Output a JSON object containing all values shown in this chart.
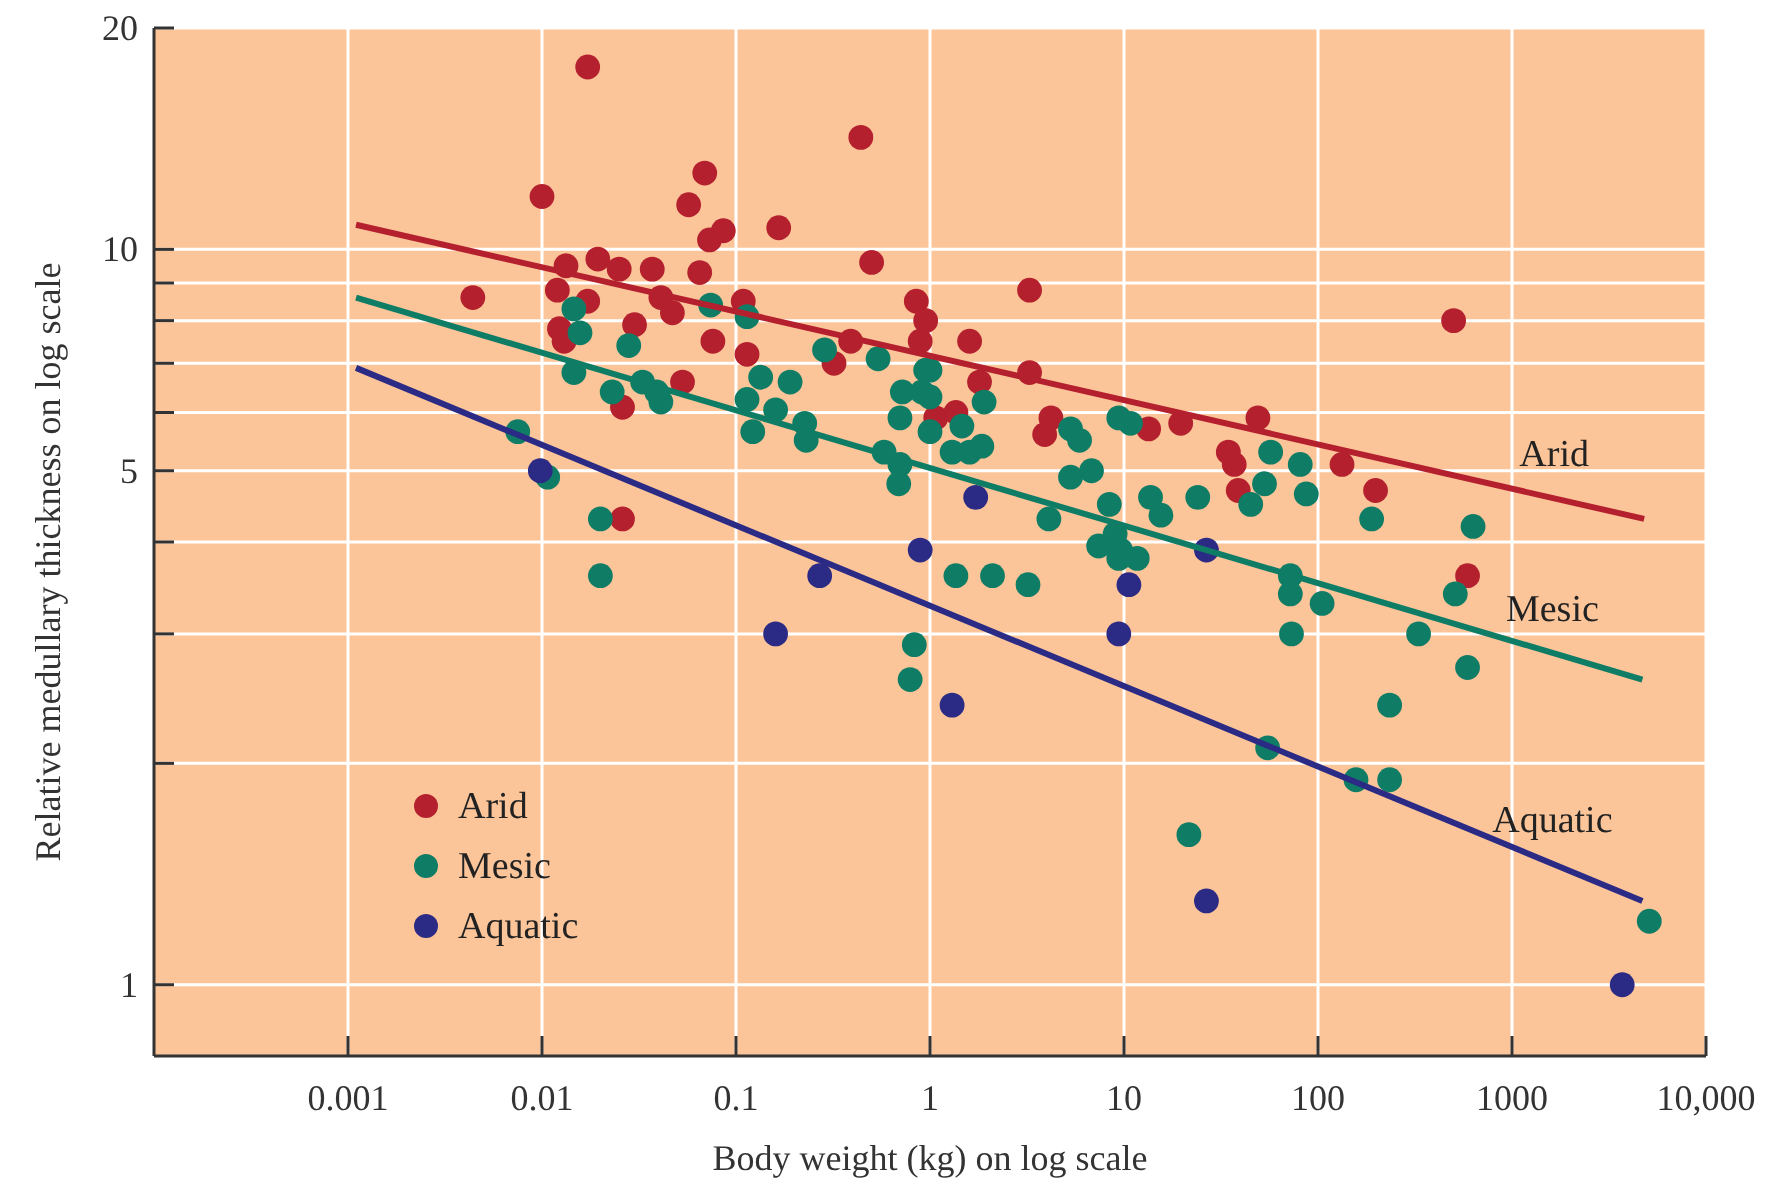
{
  "chart_data": {
    "type": "scatter",
    "xlabel": "Body weight (kg) on log scale",
    "ylabel": "Relative medullary thickness on log scale",
    "log": "xy",
    "grid": true,
    "legend": "bottom left",
    "xlim": [
      0.0001,
      10000
    ],
    "ylim": [
      0.8,
      20
    ],
    "xticks": [
      0.001,
      0.01,
      0.1,
      1,
      10,
      100,
      1000,
      {
        "value": 10000,
        "label": "10,000"
      }
    ],
    "yticks": [
      1,
      {
        "value": 2,
        "label": null
      },
      {
        "value": 3,
        "label": null
      },
      {
        "value": 4,
        "label": null
      },
      5,
      {
        "value": 6,
        "label": null
      },
      {
        "value": 7,
        "label": null
      },
      {
        "value": 8,
        "label": null
      },
      {
        "value": 9,
        "label": null
      },
      10,
      20
    ],
    "series": [
      {
        "name": "Arid",
        "color": "#b5202e",
        "x": [
          0.0172,
          0.01,
          0.0044,
          0.0133,
          0.0194,
          0.025,
          0.037,
          0.012,
          0.0172,
          0.03,
          0.0123,
          0.013,
          0.041,
          0.047,
          0.057,
          0.069,
          0.073,
          0.086,
          0.065,
          0.076,
          0.053,
          0.026,
          0.026,
          0.109,
          0.114,
          0.166,
          0.44,
          0.5,
          0.39,
          0.32,
          0.85,
          0.95,
          0.89,
          1.07,
          3.26,
          1.6,
          3.26,
          1.8,
          1.36,
          4.2,
          3.9,
          13.4,
          19.6,
          49,
          34.5,
          37,
          38.8,
          133,
          198,
          500,
          590
        ],
        "values": [
          17.7,
          11.8,
          8.6,
          9.5,
          9.7,
          9.4,
          9.4,
          8.8,
          8.5,
          7.9,
          7.8,
          7.5,
          8.6,
          8.2,
          11.5,
          12.7,
          10.3,
          10.6,
          9.3,
          7.5,
          6.6,
          6.1,
          4.3,
          8.5,
          7.2,
          10.7,
          14.2,
          9.6,
          7.5,
          7,
          8.5,
          8,
          7.5,
          5.9,
          8.8,
          7.5,
          6.8,
          6.6,
          6,
          5.9,
          5.6,
          5.7,
          5.8,
          5.9,
          5.3,
          5.1,
          4.7,
          5.1,
          4.7,
          8,
          3.6
        ]
      },
      {
        "name": "Mesic",
        "color": "#0f7d66",
        "x": [
          0.0075,
          0.0107,
          0.02,
          0.0146,
          0.0157,
          0.0146,
          0.028,
          0.023,
          0.033,
          0.041,
          0.039,
          0.074,
          0.114,
          0.134,
          0.19,
          0.114,
          0.122,
          0.16,
          0.226,
          0.23,
          0.286,
          0.54,
          0.58,
          0.7,
          0.69,
          0.72,
          0.95,
          0.91,
          0.7,
          1,
          1.3,
          1.46,
          1,
          1,
          1.9,
          1.85,
          1.6,
          5.3,
          5.9,
          5.3,
          6.8,
          8.4,
          9.4,
          10.8,
          13.7,
          15.5,
          24,
          4.1,
          57,
          81,
          53,
          45,
          87,
          189,
          630,
          1.36,
          2.1,
          3.2,
          7.4,
          9,
          9.6,
          11.7,
          9.4,
          72,
          72,
          73,
          105,
          510,
          330,
          590,
          234,
          55,
          157,
          234,
          21.6,
          5100,
          0.02,
          0.83,
          0.79
        ],
        "values": [
          5.65,
          4.9,
          4.3,
          8.3,
          7.7,
          6.8,
          7.4,
          6.4,
          6.6,
          6.2,
          6.4,
          8.4,
          8.1,
          6.7,
          6.6,
          6.25,
          5.65,
          6.05,
          5.8,
          5.5,
          7.3,
          7.1,
          5.3,
          5.1,
          4.8,
          6.4,
          6.85,
          6.4,
          5.9,
          5.65,
          5.3,
          5.75,
          6.85,
          6.3,
          6.2,
          5.4,
          5.3,
          5.7,
          5.5,
          4.9,
          5,
          4.5,
          5.9,
          5.8,
          4.6,
          4.35,
          4.6,
          4.3,
          5.3,
          5.1,
          4.8,
          4.5,
          4.65,
          4.3,
          4.2,
          3.6,
          3.6,
          3.5,
          3.95,
          4.1,
          3.9,
          3.8,
          3.8,
          3.6,
          3.4,
          3,
          3.3,
          3.4,
          3,
          2.7,
          2.4,
          2.1,
          1.9,
          1.9,
          1.6,
          1.22,
          3.6,
          2.9,
          2.6
        ]
      },
      {
        "name": "Aquatic",
        "color": "#2b2a84",
        "x": [
          0.0098,
          0.89,
          0.27,
          0.16,
          1.3,
          1.72,
          26.6,
          10.6,
          9.4,
          26.6,
          3700
        ],
        "values": [
          5,
          3.9,
          3.6,
          3,
          2.4,
          4.6,
          3.9,
          3.5,
          3,
          1.3,
          1
        ]
      },
      {
        "type": "line",
        "name": "Arid",
        "color": "#b5202e",
        "x": [
          0.0011,
          4800
        ],
        "values": [
          10.8,
          4.3
        ]
      },
      {
        "type": "line",
        "name": "Mesic",
        "color": "#0f7d66",
        "x": [
          0.0011,
          4700
        ],
        "values": [
          8.6,
          2.6
        ]
      },
      {
        "type": "line",
        "name": "Aquatic",
        "color": "#2b2a84",
        "x": [
          0.0011,
          4700
        ],
        "values": [
          6.9,
          1.3
        ]
      }
    ]
  }
}
